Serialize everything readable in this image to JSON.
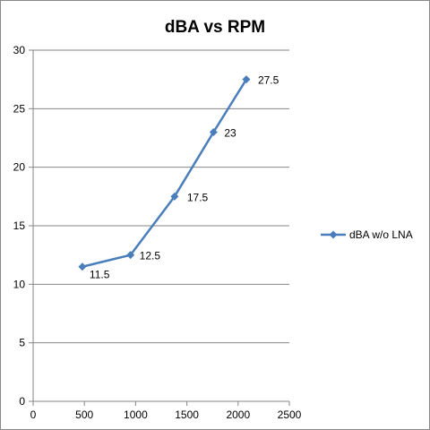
{
  "chart_data": {
    "type": "line",
    "title": "dBA vs RPM",
    "xlabel": "",
    "ylabel": "",
    "xlim": [
      0,
      2500
    ],
    "ylim": [
      0,
      30
    ],
    "xticks": [
      0,
      500,
      1000,
      1500,
      2000,
      2500
    ],
    "yticks": [
      0,
      5,
      10,
      15,
      20,
      25,
      30
    ],
    "grid": "horizontal",
    "legend_position": "right",
    "series": [
      {
        "name": "dBA w/o LNA",
        "color": "#4a7ebb",
        "marker": "diamond",
        "x": [
          480,
          950,
          1380,
          1760,
          2080
        ],
        "y": [
          11.5,
          12.5,
          17.5,
          23,
          27.5
        ],
        "labels": [
          "11.5",
          "12.5",
          "17.5",
          "23",
          "27.5"
        ]
      }
    ]
  }
}
